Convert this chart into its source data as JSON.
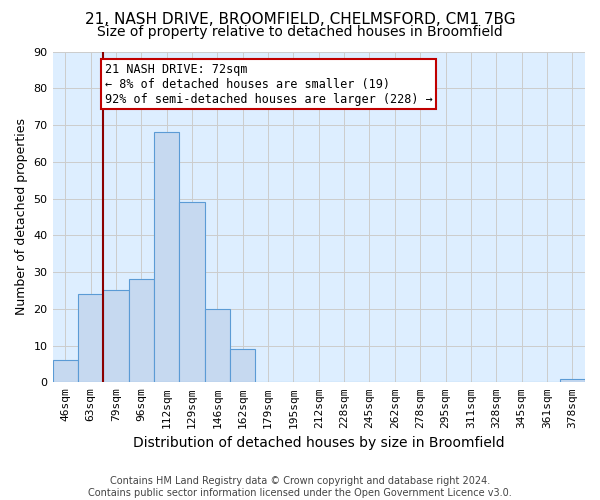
{
  "title1": "21, NASH DRIVE, BROOMFIELD, CHELMSFORD, CM1 7BG",
  "title2": "Size of property relative to detached houses in Broomfield",
  "xlabel": "Distribution of detached houses by size in Broomfield",
  "ylabel": "Number of detached properties",
  "categories": [
    "46sqm",
    "63sqm",
    "79sqm",
    "96sqm",
    "112sqm",
    "129sqm",
    "146sqm",
    "162sqm",
    "179sqm",
    "195sqm",
    "212sqm",
    "228sqm",
    "245sqm",
    "262sqm",
    "278sqm",
    "295sqm",
    "311sqm",
    "328sqm",
    "345sqm",
    "361sqm",
    "378sqm"
  ],
  "values": [
    6,
    24,
    25,
    28,
    68,
    49,
    20,
    9,
    0,
    0,
    0,
    0,
    0,
    0,
    0,
    0,
    0,
    0,
    0,
    0,
    1
  ],
  "bar_color": "#c6d9f0",
  "bar_edge_color": "#5b9bd5",
  "highlight_color": "#8b0000",
  "annotation_text": "21 NASH DRIVE: 72sqm\n← 8% of detached houses are smaller (19)\n92% of semi-detached houses are larger (228) →",
  "annotation_box_color": "white",
  "annotation_box_edge": "#c00000",
  "ylim": [
    0,
    90
  ],
  "yticks": [
    0,
    10,
    20,
    30,
    40,
    50,
    60,
    70,
    80,
    90
  ],
  "grid_color": "#cccccc",
  "plot_bg": "#ddeeff",
  "footer1": "Contains HM Land Registry data © Crown copyright and database right 2024.",
  "footer2": "Contains public sector information licensed under the Open Government Licence v3.0.",
  "vline_x": 1.5,
  "title1_fontsize": 11,
  "title2_fontsize": 10,
  "annot_fontsize": 8.5,
  "ylabel_fontsize": 9,
  "xlabel_fontsize": 10,
  "tick_fontsize": 8,
  "footer_fontsize": 7
}
